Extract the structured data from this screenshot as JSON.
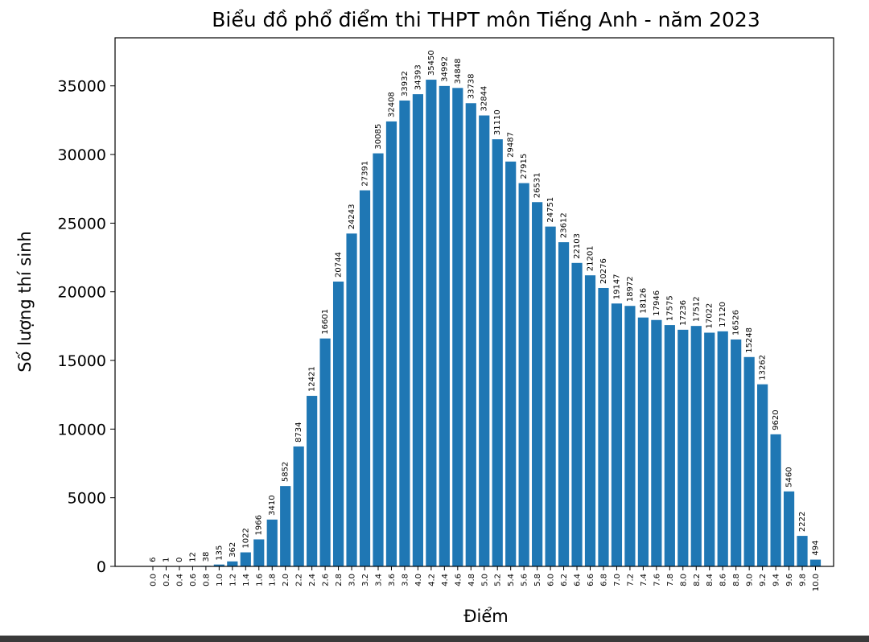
{
  "chart_data": {
    "type": "bar",
    "title": "Biểu đồ phổ điểm thi THPT môn Tiếng Anh - năm 2023",
    "xlabel": "Điểm",
    "ylabel": "Số lượng thí sinh",
    "ylim": [
      0,
      38500
    ],
    "yticks": [
      0,
      5000,
      10000,
      15000,
      20000,
      25000,
      30000,
      35000
    ],
    "grid": false,
    "bar_color": "#1f77b4",
    "categories": [
      "0.0",
      "0.2",
      "0.4",
      "0.6",
      "0.8",
      "1.0",
      "1.2",
      "1.4",
      "1.6",
      "1.8",
      "2.0",
      "2.2",
      "2.4",
      "2.6",
      "2.8",
      "3.0",
      "3.2",
      "3.4",
      "3.6",
      "3.8",
      "4.0",
      "4.2",
      "4.4",
      "4.6",
      "4.8",
      "5.0",
      "5.2",
      "5.4",
      "5.6",
      "5.8",
      "6.0",
      "6.2",
      "6.4",
      "6.6",
      "6.8",
      "7.0",
      "7.2",
      "7.4",
      "7.6",
      "7.8",
      "8.0",
      "8.2",
      "8.4",
      "8.6",
      "8.8",
      "9.0",
      "9.2",
      "9.4",
      "9.6",
      "9.8",
      "10.0"
    ],
    "values": [
      6,
      1,
      0,
      12,
      38,
      135,
      362,
      1022,
      1966,
      3410,
      5852,
      8734,
      12421,
      16601,
      20744,
      24243,
      27391,
      30085,
      32408,
      33932,
      34393,
      35450,
      34992,
      34848,
      33738,
      32844,
      31110,
      29487,
      27915,
      26531,
      24751,
      23612,
      22103,
      21201,
      20276,
      19147,
      18972,
      18126,
      17946,
      17575,
      17236,
      17512,
      17022,
      17120,
      16526,
      15248,
      13262,
      9620,
      5460,
      2222,
      494
    ]
  }
}
